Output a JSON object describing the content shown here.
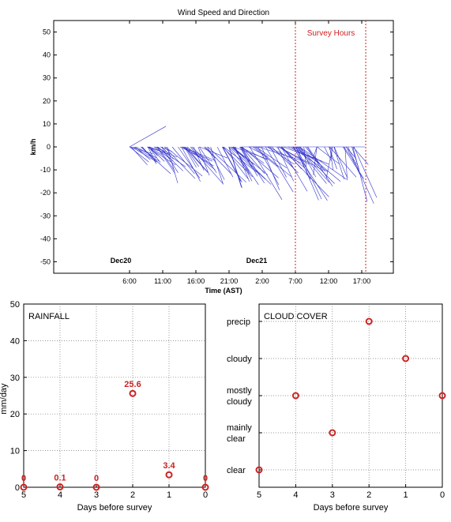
{
  "chart_data": [
    {
      "type": "line",
      "title": "Wind Speed and Direction",
      "xlabel": "Time (AST)",
      "ylabel": "km/h",
      "ylim": [
        -55,
        55
      ],
      "yticks": [
        50,
        40,
        30,
        20,
        10,
        0,
        -10,
        -20,
        -30,
        -40,
        -50
      ],
      "xticks": [
        "6:00",
        "11:00",
        "16:00",
        "21:00",
        "2:00",
        "7:00",
        "12:00",
        "17:00"
      ],
      "date_labels": [
        "Dec20",
        "Dec21"
      ],
      "annotation": "Survey Hours",
      "survey_hours_lines": [
        "6:00 Dec21",
        "17:30 Dec21"
      ],
      "grid": false,
      "colors": {
        "vectors": "#3333cc",
        "survey_lines": "#cc2222",
        "annotation": "#cc2222"
      },
      "wind_vectors": [
        {
          "time": "6:00 Dec20",
          "u": 0,
          "v": 0
        },
        {
          "time": "6:00 Dec20",
          "u": 0,
          "v": 0
        },
        {
          "time": "6:00 Dec20",
          "u": 0,
          "v": 0
        },
        {
          "time": "6:00 Dec20",
          "u": 0,
          "v": 0
        },
        {
          "time": "6:00 Dec20",
          "u": 0,
          "v": 0
        },
        {
          "time": "6:00 Dec20",
          "u": 0,
          "v": 0
        },
        {
          "time": "6:00 Dec20",
          "u": 0,
          "v": 0
        },
        {
          "time": "6:00 Dec20",
          "u": 0,
          "v": 0
        },
        {
          "time": "6:00 Dec20",
          "u": 0,
          "v": 0
        },
        {
          "time": "6:00 Dec20",
          "u": 0,
          "v": 0
        }
      ]
    },
    {
      "type": "scatter",
      "title": "RAINFALL",
      "xlabel": "Days before survey",
      "ylabel": "mm/day",
      "xlim": [
        5,
        0
      ],
      "ylim": [
        0,
        50
      ],
      "xticks": [
        5,
        4,
        3,
        2,
        1,
        0
      ],
      "yticks": [
        0,
        10,
        20,
        30,
        40,
        50
      ],
      "grid": true,
      "x": [
        5,
        4,
        3,
        2,
        1,
        0
      ],
      "y": [
        0,
        0.1,
        0,
        25.6,
        3.4,
        0
      ],
      "data_labels": [
        "0",
        "0.1",
        "0",
        "25.6",
        "3.4",
        "0"
      ],
      "colors": {
        "markers": "#cc2222",
        "labels": "#cc2222"
      }
    },
    {
      "type": "scatter",
      "title": "CLOUD COVER",
      "xlabel": "Days before survey",
      "xlim": [
        5,
        0
      ],
      "xticks": [
        5,
        4,
        3,
        2,
        1,
        0
      ],
      "categories": [
        "clear",
        "mainly\nclear",
        "mostly\ncloudy",
        "cloudy",
        "precip"
      ],
      "grid": true,
      "x": [
        5,
        4,
        3,
        2,
        1,
        0
      ],
      "y": [
        "clear",
        "mostly\ncloudy",
        "mainly\nclear",
        "precip",
        "cloudy",
        "mostly\ncloudy"
      ],
      "colors": {
        "markers": "#cc2222"
      }
    }
  ]
}
